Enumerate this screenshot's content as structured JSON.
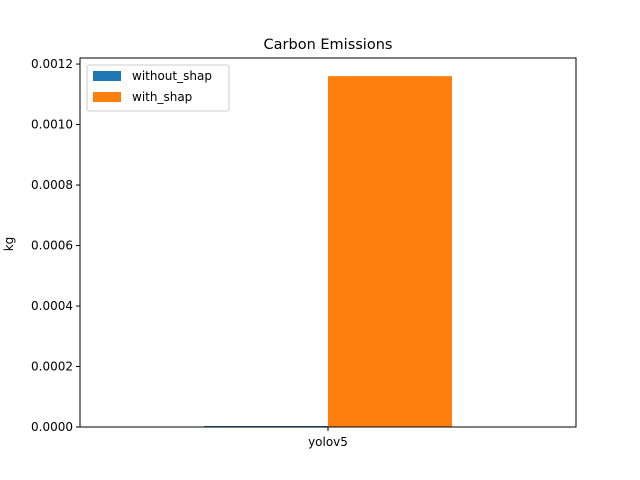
{
  "chart_data": {
    "type": "bar",
    "title": "Carbon Emissions",
    "xlabel": "",
    "ylabel": "kg",
    "categories": [
      "yolov5"
    ],
    "series": [
      {
        "name": "without_shap",
        "values": [
          3e-06
        ],
        "color": "#1f77b4"
      },
      {
        "name": "with_shap",
        "values": [
          0.00116
        ],
        "color": "#ff7f0e"
      }
    ],
    "ylim": [
      0,
      0.00122
    ],
    "yticks": [
      "0.0000",
      "0.0002",
      "0.0004",
      "0.0006",
      "0.0008",
      "0.0010",
      "0.0012"
    ],
    "ytick_values": [
      0,
      0.0002,
      0.0004,
      0.0006,
      0.0008,
      0.001,
      0.0012
    ],
    "grid": false,
    "legend_position": "top-left"
  }
}
